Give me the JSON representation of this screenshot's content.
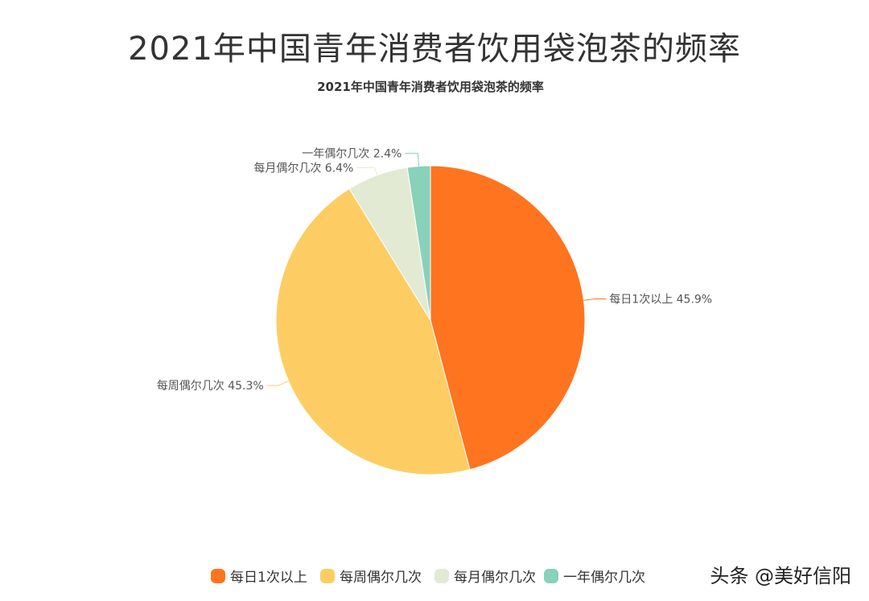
{
  "page": {
    "main_title": "2021年中国青年消费者饮用袋泡茶的频率",
    "watermark": "头条 @美好信阳"
  },
  "chart_data": {
    "type": "pie",
    "title": "2021年中国青年消费者饮用袋泡茶的频率",
    "slices": [
      {
        "name": "每日1次以上",
        "value": 45.9,
        "label": "每日1次以上 45.9%",
        "color": "#FF741E"
      },
      {
        "name": "每周偶尔几次",
        "value": 45.3,
        "label": "每周偶尔几次 45.3%",
        "color": "#FDCD64"
      },
      {
        "name": "每月偶尔几次",
        "value": 6.4,
        "label": "每月偶尔几次 6.4%",
        "color": "#E3EAD3"
      },
      {
        "name": "一年偶尔几次",
        "value": 2.4,
        "label": "一年偶尔几次 2.4%",
        "color": "#88D1BB"
      }
    ],
    "legend": {
      "position": "bottom",
      "items": [
        "每日1次以上",
        "每周偶尔几次",
        "每月偶尔几次",
        "一年偶尔几次"
      ]
    }
  }
}
